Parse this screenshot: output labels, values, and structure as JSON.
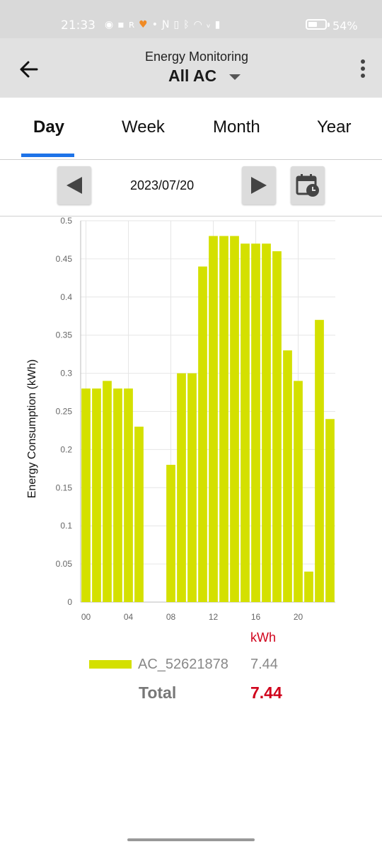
{
  "status": {
    "time": "21:33",
    "battery_percent": "54%",
    "battery_level": 0.54,
    "icons": [
      "messenger-icon",
      "bank-icon",
      "r-icon",
      "heart-icon",
      "dot-icon",
      "nfc-icon",
      "vibrate-icon",
      "bluetooth-icon",
      "wifi-icon",
      "volte-icon",
      "signal-icon"
    ]
  },
  "header": {
    "subtitle": "Energy Monitoring",
    "title": "All AC"
  },
  "tabs": [
    {
      "label": "Day",
      "active": true
    },
    {
      "label": "Week",
      "active": false
    },
    {
      "label": "Month",
      "active": false
    },
    {
      "label": "Year",
      "active": false
    }
  ],
  "date_nav": {
    "date": "2023/07/20"
  },
  "colors": {
    "bar": "#d4e000",
    "accent": "#1e73e8",
    "total_red": "#d0021b"
  },
  "chart_data": {
    "type": "bar",
    "ylabel": "Energy Consumption (kWh)",
    "xlabel": "",
    "ylim": [
      0,
      0.5
    ],
    "yticks": [
      "0",
      "0.05",
      "0.1",
      "0.15",
      "0.2",
      "0.25",
      "0.3",
      "0.35",
      "0.4",
      "0.45",
      "0.5"
    ],
    "xticks": [
      "00",
      "04",
      "08",
      "12",
      "16",
      "20"
    ],
    "categories": [
      "00",
      "01",
      "02",
      "03",
      "04",
      "05",
      "06",
      "07",
      "08",
      "09",
      "10",
      "11",
      "12",
      "13",
      "14",
      "15",
      "16",
      "17",
      "18",
      "19",
      "20",
      "21",
      "22",
      "23"
    ],
    "values": [
      0.28,
      0.28,
      0.29,
      0.28,
      0.28,
      0.23,
      0,
      0,
      0.18,
      0.3,
      0.3,
      0.44,
      0.48,
      0.48,
      0.48,
      0.47,
      0.47,
      0.47,
      0.46,
      0.33,
      0.29,
      0.04,
      0.37,
      0.24
    ],
    "grid": true
  },
  "legend": {
    "unit": "kWh",
    "items": [
      {
        "name": "AC_52621878",
        "value": "7.44"
      }
    ],
    "total_label": "Total",
    "total_value": "7.44"
  }
}
